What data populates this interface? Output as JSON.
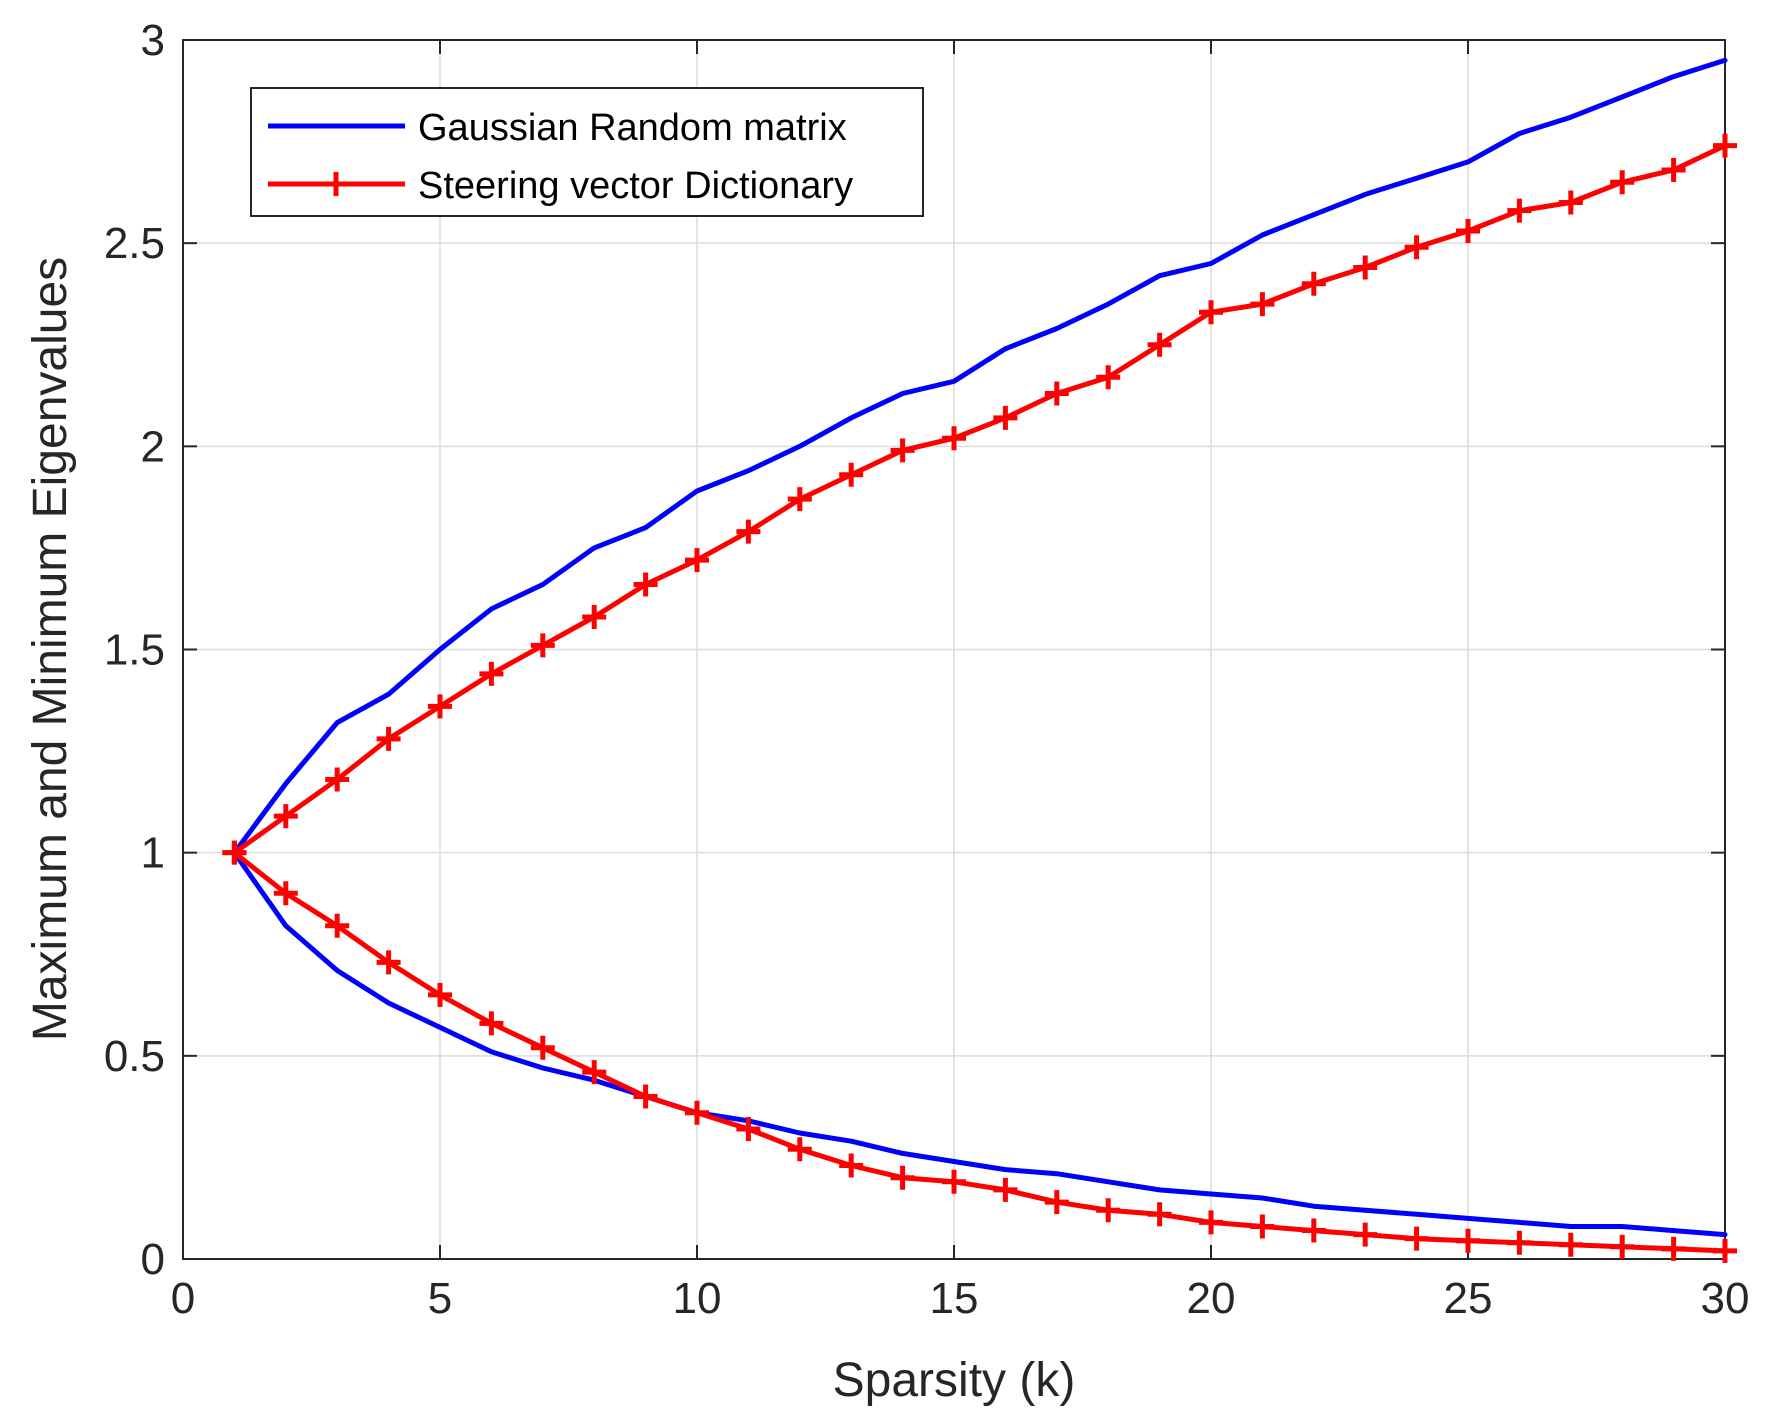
{
  "chart_data": {
    "type": "line",
    "title": "",
    "xlabel": "Sparsity (k)",
    "ylabel": "Maximum and Minimum Eigenvalues",
    "xlim": [
      0,
      30
    ],
    "ylim": [
      0,
      3
    ],
    "xticks": [
      0,
      5,
      10,
      15,
      20,
      25,
      30
    ],
    "yticks": [
      0,
      0.5,
      1,
      1.5,
      2,
      2.5,
      3
    ],
    "xtick_labels": [
      "0",
      "5",
      "10",
      "15",
      "20",
      "25",
      "30"
    ],
    "ytick_labels": [
      "0",
      "0.5",
      "1",
      "1.5",
      "2",
      "2.5",
      "3"
    ],
    "grid": true,
    "legend": "top-left",
    "x": [
      1,
      2,
      3,
      4,
      5,
      6,
      7,
      8,
      9,
      10,
      11,
      12,
      13,
      14,
      15,
      16,
      17,
      18,
      19,
      20,
      21,
      22,
      23,
      24,
      25,
      26,
      27,
      28,
      29,
      30
    ],
    "series": [
      {
        "name": "Gaussian Random matrix",
        "legend_label": "Gaussian Random matrix",
        "color": "#0000ff",
        "marker": "none",
        "max_values": [
          1.0,
          1.17,
          1.32,
          1.39,
          1.5,
          1.6,
          1.66,
          1.75,
          1.8,
          1.89,
          1.94,
          2.0,
          2.07,
          2.13,
          2.16,
          2.24,
          2.29,
          2.35,
          2.42,
          2.45,
          2.52,
          2.57,
          2.62,
          2.66,
          2.7,
          2.77,
          2.81,
          2.86,
          2.91,
          2.95
        ],
        "min_values": [
          1.0,
          0.82,
          0.71,
          0.63,
          0.57,
          0.51,
          0.47,
          0.44,
          0.4,
          0.36,
          0.34,
          0.31,
          0.29,
          0.26,
          0.24,
          0.22,
          0.21,
          0.19,
          0.17,
          0.16,
          0.15,
          0.13,
          0.12,
          0.11,
          0.1,
          0.09,
          0.08,
          0.08,
          0.07,
          0.06
        ]
      },
      {
        "name": "Steering vector Dictionary",
        "legend_label": "Steering vector Dictionary",
        "color": "#ff0000",
        "marker": "+",
        "max_values": [
          1.0,
          1.09,
          1.18,
          1.28,
          1.36,
          1.44,
          1.51,
          1.58,
          1.66,
          1.72,
          1.79,
          1.87,
          1.93,
          1.99,
          2.02,
          2.07,
          2.13,
          2.17,
          2.25,
          2.33,
          2.35,
          2.4,
          2.44,
          2.49,
          2.53,
          2.58,
          2.6,
          2.65,
          2.68,
          2.74
        ],
        "min_values": [
          1.0,
          0.9,
          0.82,
          0.73,
          0.65,
          0.58,
          0.52,
          0.46,
          0.4,
          0.36,
          0.32,
          0.27,
          0.23,
          0.2,
          0.19,
          0.17,
          0.14,
          0.12,
          0.11,
          0.09,
          0.08,
          0.07,
          0.06,
          0.05,
          0.045,
          0.04,
          0.035,
          0.03,
          0.025,
          0.02
        ]
      }
    ]
  }
}
